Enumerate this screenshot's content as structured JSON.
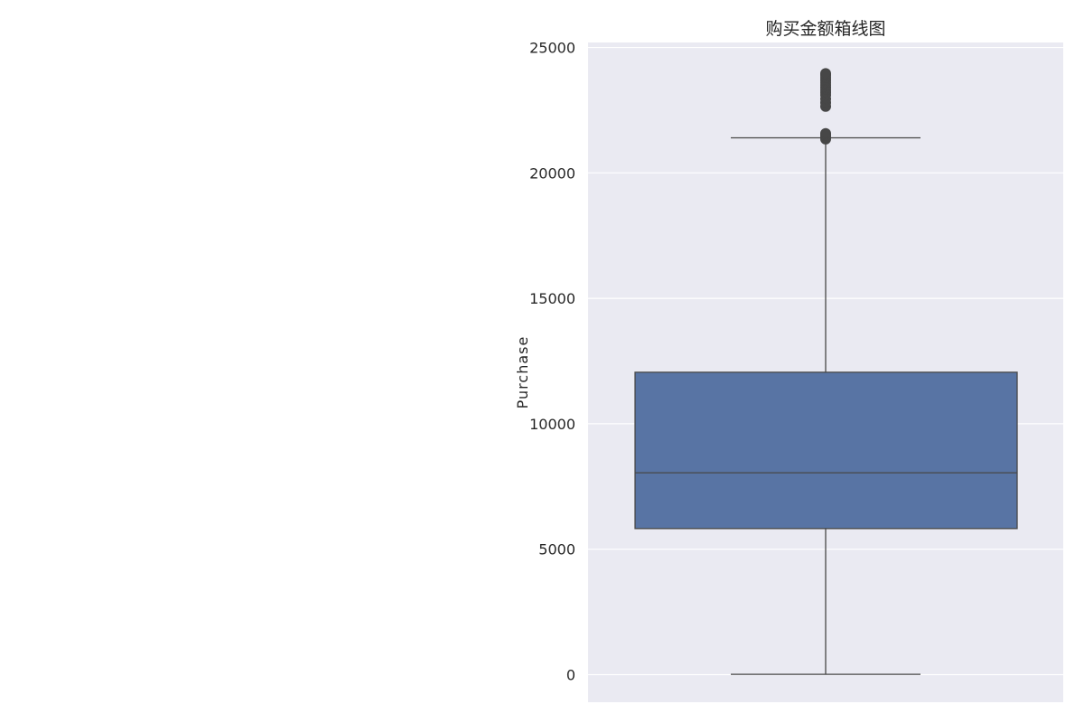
{
  "chart_data": {
    "type": "box",
    "title": "购买金额箱线图",
    "xlabel": "",
    "ylabel": "Purchase",
    "ylim": [
      -1100,
      25200
    ],
    "yticks": [
      0,
      5000,
      10000,
      15000,
      20000,
      25000
    ],
    "ytick_labels": [
      "0",
      "5000",
      "10000",
      "15000",
      "20000",
      "25000"
    ],
    "grid": true,
    "box": {
      "whisker_low": 12,
      "q1": 5823,
      "median": 8047,
      "q3": 12054,
      "whisker_high": 21400
    },
    "outliers": [
      21350,
      21420,
      21480,
      21520,
      21570,
      22650,
      22800,
      22950,
      23100,
      23200,
      23300,
      23400,
      23500,
      23600,
      23700,
      23800,
      23900,
      23960
    ],
    "colors": {
      "box_fill": "#5874a4",
      "line": "#474747",
      "plot_background": "#eaeaf2",
      "grid": "#ffffff",
      "text": "#262626"
    }
  }
}
